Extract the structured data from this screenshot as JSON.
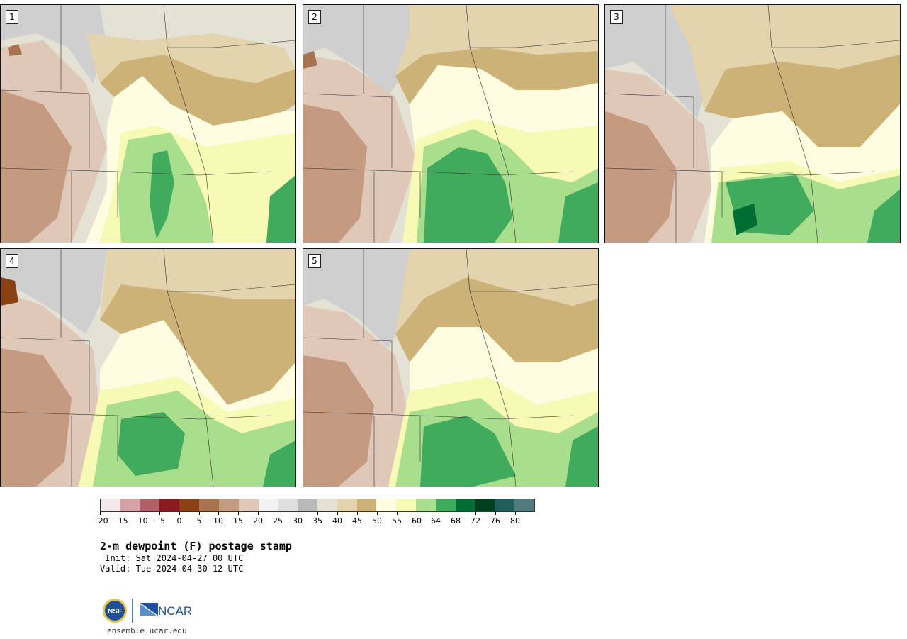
{
  "panels": [
    {
      "label": "1"
    },
    {
      "label": "2"
    },
    {
      "label": "3"
    },
    {
      "label": "4"
    },
    {
      "label": "5"
    }
  ],
  "colorbar": {
    "colors": [
      "#f4e9ea",
      "#d6a2a6",
      "#b06066",
      "#8a1a22",
      "#8a4214",
      "#a87450",
      "#c49a80",
      "#e0c8b8",
      "#f2f2f2",
      "#dedede",
      "#b9b9b9",
      "#e4e2d4",
      "#e3d4ad",
      "#ccb277",
      "#fefde2",
      "#f6fab4",
      "#a9de8d",
      "#41ab5d",
      "#006d32",
      "#00401c",
      "#1f5f5a",
      "#517b80"
    ],
    "tick_labels": [
      "−20",
      "−15",
      "−10",
      "−5",
      "0",
      "5",
      "10",
      "15",
      "20",
      "25",
      "30",
      "35",
      "40",
      "45",
      "50",
      "55",
      "60",
      "64",
      "68",
      "72",
      "76",
      "80"
    ]
  },
  "title": "2-m dewpoint (F) postage stamp",
  "init": " Init: Sat 2024-04-27 00 UTC",
  "valid": "Valid: Tue 2024-04-30 12 UTC",
  "logo": {
    "nsf": "NSF",
    "ncar": "NCAR"
  },
  "site": "ensemble.ucar.edu"
}
